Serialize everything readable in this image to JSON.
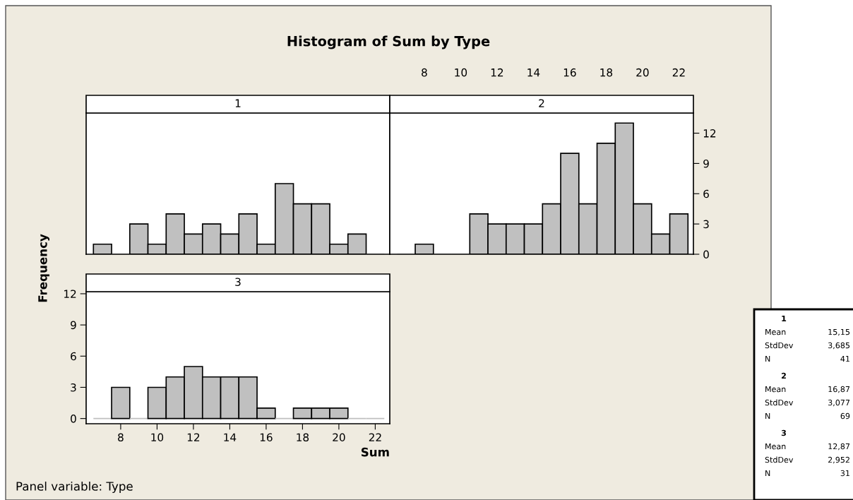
{
  "chart_data": [
    {
      "type": "histogram",
      "title": "Histogram of Sum by Type",
      "subtitle": "1",
      "bins": [
        6.5,
        7.5,
        8.5,
        9.5,
        10.5,
        11.5,
        12.5,
        13.5,
        14.5,
        15.5,
        16.5,
        17.5,
        18.5,
        19.5,
        20.5,
        21.5,
        22.5
      ],
      "values": [
        1,
        0,
        3,
        1,
        4,
        2,
        3,
        2,
        4,
        1,
        7,
        5,
        5,
        1,
        2,
        0
      ],
      "color": "#c0c0c0",
      "xlim": [
        6.1,
        22.8
      ],
      "ylim": [
        0,
        14
      ],
      "xticks": [
        8,
        10,
        12,
        14,
        16,
        18,
        20,
        22
      ],
      "yticks": [
        0,
        3,
        6,
        9,
        12
      ],
      "tick_labels": false
    },
    {
      "type": "histogram",
      "subtitle": "2",
      "bins": [
        6.5,
        7.5,
        8.5,
        9.5,
        10.5,
        11.5,
        12.5,
        13.5,
        14.5,
        15.5,
        16.5,
        17.5,
        18.5,
        19.5,
        20.5,
        21.5,
        22.5
      ],
      "values": [
        0,
        1,
        0,
        0,
        4,
        3,
        3,
        3,
        5,
        10,
        5,
        11,
        13,
        5,
        2,
        4
      ],
      "color": "#c0c0c0",
      "xlim": [
        6.1,
        22.8
      ],
      "ylim": [
        0,
        14
      ],
      "xticks": [
        8,
        10,
        12,
        14,
        16,
        18,
        20,
        22
      ],
      "yticks": [
        0,
        3,
        6,
        9,
        12
      ]
    },
    {
      "type": "histogram",
      "subtitle": "3",
      "xlabel": "Sum",
      "ylabel": "Frequency",
      "annotations": [
        "Panel variable: Type"
      ],
      "bins": [
        6.5,
        7.5,
        8.5,
        9.5,
        10.5,
        11.5,
        12.5,
        13.5,
        14.5,
        15.5,
        16.5,
        17.5,
        18.5,
        19.5,
        20.5,
        21.5,
        22.5
      ],
      "values": [
        0,
        3,
        0,
        3,
        4,
        5,
        4,
        4,
        4,
        1,
        0,
        1,
        1,
        1,
        0,
        0
      ],
      "color": "#c0c0c0",
      "xlim": [
        6.1,
        22.8
      ],
      "ylim": [
        -0.5,
        12.2
      ],
      "xticks": [
        8,
        10,
        12,
        14,
        16,
        18,
        20,
        22
      ],
      "yticks": [
        0,
        3,
        6,
        9,
        12
      ]
    },
    {
      "type": "other",
      "annotations": [
        "1",
        "Mean",
        "15,15",
        "StdDev",
        "3,685",
        "N",
        "41",
        "2",
        "Mean",
        "16,87",
        "StdDev",
        "3,077",
        "N",
        "69",
        "3",
        "Mean",
        "12,87",
        "StdDev",
        "2,952",
        "N",
        "31"
      ]
    }
  ]
}
